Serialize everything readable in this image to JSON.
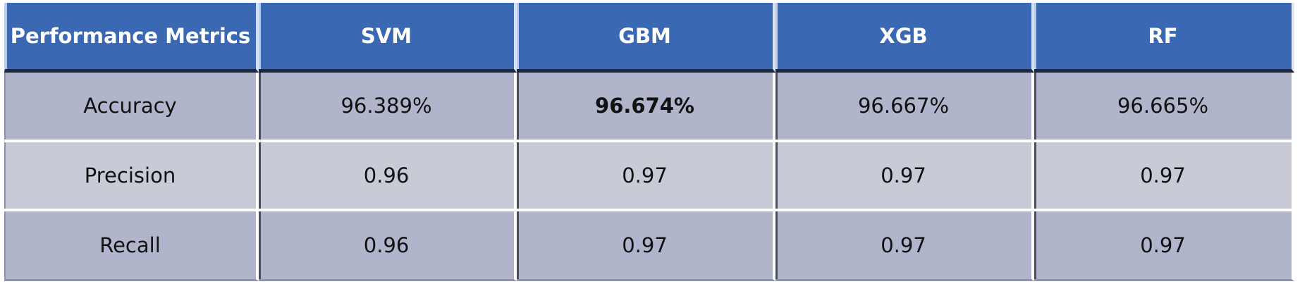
{
  "chart_data": {
    "type": "table",
    "title": "",
    "columns": [
      "Performance Metrics",
      "SVM",
      "GBM",
      "XGB",
      "RF"
    ],
    "rows": [
      {
        "metric": "Accuracy",
        "values": [
          "96.389%",
          "96.674%",
          "96.667%",
          "96.665%"
        ],
        "bold_index": 1
      },
      {
        "metric": "Precision",
        "values": [
          "0.96",
          "0.97",
          "0.97",
          "0.97"
        ]
      },
      {
        "metric": "Recall",
        "values": [
          "0.96",
          "0.97",
          "0.97",
          "0.97"
        ]
      }
    ],
    "colors": {
      "header_bg": "#3b68b2",
      "header_text": "#ffffff",
      "row_dark": "#b0b5cb",
      "row_light": "#c8cbd6"
    }
  }
}
